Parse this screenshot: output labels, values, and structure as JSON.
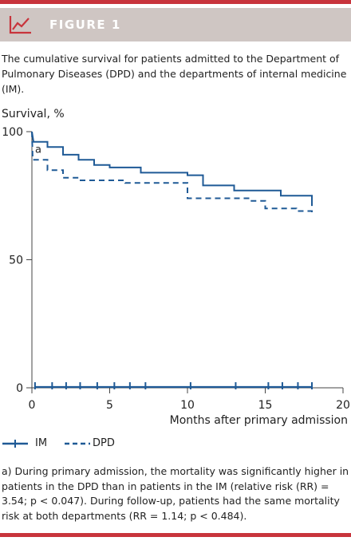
{
  "figure": {
    "label": "FIGURE 1",
    "icon": "chart-icon",
    "caption": "The cumulative survival for patients admitted to the Department of Pulmonary Diseases (DPD) and the departments of internal medicine (IM).",
    "footnote": "a) During primary admission, the mortality was significantly higher in patients in the DPD than in patients in the IM (relative risk (RR) = 3.54; p < 0.047). During follow-up, patients had the same mortality risk at both departments (RR = 1.14; p < 0.484)."
  },
  "colors": {
    "accent": "#c8343c",
    "header_bg": "#cfc6c3",
    "series": "#1f5a96"
  },
  "chart_data": {
    "type": "line",
    "ylabel": "Survival, %",
    "xlabel": "Months after primary admission",
    "xlim": [
      0,
      20
    ],
    "ylim": [
      0,
      100
    ],
    "xticks": [
      0,
      5,
      10,
      15,
      20
    ],
    "yticks": [
      0,
      50,
      100
    ],
    "annotation": {
      "text": "a",
      "x": 0.1,
      "y": 93
    },
    "grid": false,
    "legend_position": "bottom-left",
    "series": [
      {
        "name": "IM",
        "style": "solid",
        "points": [
          [
            0,
            100
          ],
          [
            0.1,
            96
          ],
          [
            1,
            96
          ],
          [
            1,
            94
          ],
          [
            2,
            94
          ],
          [
            2,
            91
          ],
          [
            3,
            91
          ],
          [
            3,
            89
          ],
          [
            4,
            89
          ],
          [
            4,
            87
          ],
          [
            5,
            87
          ],
          [
            5,
            86
          ],
          [
            7,
            86
          ],
          [
            7,
            84
          ],
          [
            10,
            84
          ],
          [
            10,
            83
          ],
          [
            11,
            83
          ],
          [
            11,
            79
          ],
          [
            13,
            79
          ],
          [
            13,
            77
          ],
          [
            16,
            77
          ],
          [
            16,
            75
          ],
          [
            18,
            75
          ],
          [
            18,
            71
          ]
        ],
        "censor_marks": [
          0.2,
          1.3,
          2.2,
          3.1,
          4.2,
          5.3,
          6.3,
          7.3,
          10.2,
          13.1,
          15.2,
          16.1,
          17.1,
          18.0
        ]
      },
      {
        "name": "DPD",
        "style": "dashed",
        "points": [
          [
            0,
            100
          ],
          [
            0.05,
            89
          ],
          [
            1,
            89
          ],
          [
            1,
            85
          ],
          [
            2,
            85
          ],
          [
            2,
            82
          ],
          [
            3,
            82
          ],
          [
            3,
            81
          ],
          [
            6,
            81
          ],
          [
            6,
            80
          ],
          [
            10,
            80
          ],
          [
            10,
            77
          ],
          [
            10,
            74
          ],
          [
            14,
            74
          ],
          [
            14,
            73
          ],
          [
            15,
            73
          ],
          [
            15,
            70
          ],
          [
            17,
            70
          ],
          [
            17,
            69
          ],
          [
            18,
            69
          ],
          [
            18,
            68
          ]
        ],
        "censor_marks": []
      }
    ]
  }
}
